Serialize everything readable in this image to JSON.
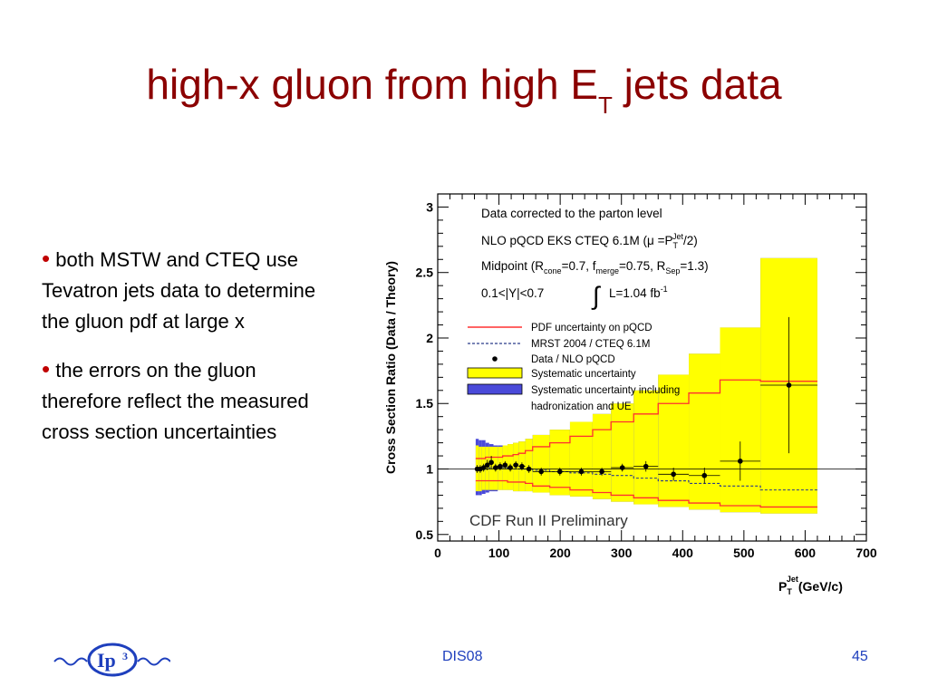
{
  "slide": {
    "title_main": "high-x gluon from high E",
    "title_sub": "T",
    "title_end": " jets data",
    "bullets": [
      "both MSTW and CTEQ use Tevatron jets data to determine the gluon pdf at large x",
      "the errors on the gluon therefore reflect the measured cross section uncertainties"
    ],
    "footer_center": "DIS08",
    "page_number": "45",
    "logo_text": "Ip",
    "logo_sup": "3"
  },
  "colors": {
    "title": "#8b0000",
    "bullet": "#c00000",
    "footer": "#1e3fbd",
    "systematic": "#ffff00",
    "hadronization": "#4a4ad9",
    "pdf_line": "#ff3030",
    "mrst_line": "#2a3a8a"
  },
  "chart_data": {
    "type": "scatter",
    "ylabel": "Cross Section Ratio (Data / Theory)",
    "xlabel_main": "P",
    "xlabel_sub": "T",
    "xlabel_sup": "Jet",
    "xlabel_unit": "(GeV/c)",
    "xlim": [
      0,
      700
    ],
    "ylim": [
      0.45,
      3.1
    ],
    "xticks": [
      0,
      100,
      200,
      300,
      400,
      500,
      600,
      700
    ],
    "yticks": [
      0.5,
      1,
      1.5,
      2,
      2.5,
      3
    ],
    "annotations": {
      "line1": "Data corrected to the parton level",
      "line2_pre": "NLO pQCD EKS CTEQ 6.1M  (μ =P",
      "line2_sub": "T",
      "line2_sup": "Jet",
      "line2_post": "/2)",
      "line3_pre": "Midpoint  (R",
      "line3_sub1": "cone",
      "line3_mid1": "=0.7, f",
      "line3_sub2": "merge",
      "line3_mid2": "=0.75, R",
      "line3_sub3": "Sep",
      "line3_post": "=1.3)",
      "line4_rap": "0.1<|Y|<0.7",
      "line4_int": "∫",
      "line4_lumi": "L=1.04 fb",
      "line4_sup": "-1",
      "watermark": "CDF Run II Preliminary"
    },
    "legend": [
      {
        "label": "PDF uncertainty on pQCD",
        "kind": "pdf-line"
      },
      {
        "label": "MRST 2004 / CTEQ 6.1M",
        "kind": "mrst-line"
      },
      {
        "label": "Data / NLO pQCD",
        "kind": "marker"
      },
      {
        "label": "Systematic uncertainty",
        "kind": "syst-box"
      },
      {
        "label": "Systematic uncertainty including",
        "kind": "had-box"
      },
      {
        "label": "hadronization and UE",
        "kind": "none"
      }
    ],
    "bins": [
      {
        "lo": 62,
        "hi": 67,
        "y": 1.0,
        "err": 0.03,
        "sysl": 0.83,
        "sysh": 1.18,
        "hadl": 0.8,
        "hadh": 1.23,
        "pdfl": 0.91,
        "pdfh": 1.08,
        "mrst": 1.0
      },
      {
        "lo": 67,
        "hi": 72,
        "y": 1.0,
        "err": 0.03,
        "sysl": 0.83,
        "sysh": 1.17,
        "hadl": 0.8,
        "hadh": 1.22,
        "pdfl": 0.91,
        "pdfh": 1.08,
        "mrst": 1.0
      },
      {
        "lo": 72,
        "hi": 78,
        "y": 1.01,
        "err": 0.03,
        "sysl": 0.84,
        "sysh": 1.17,
        "hadl": 0.81,
        "hadh": 1.22,
        "pdfl": 0.91,
        "pdfh": 1.08,
        "mrst": 1.0
      },
      {
        "lo": 78,
        "hi": 84,
        "y": 1.03,
        "err": 0.04,
        "sysl": 0.84,
        "sysh": 1.17,
        "hadl": 0.82,
        "hadh": 1.2,
        "pdfl": 0.91,
        "pdfh": 1.09,
        "mrst": 1.0
      },
      {
        "lo": 84,
        "hi": 91,
        "y": 1.05,
        "err": 0.05,
        "sysl": 0.84,
        "sysh": 1.17,
        "hadl": 0.83,
        "hadh": 1.19,
        "pdfl": 0.91,
        "pdfh": 1.09,
        "mrst": 1.01
      },
      {
        "lo": 91,
        "hi": 98,
        "y": 1.01,
        "err": 0.03,
        "sysl": 0.84,
        "sysh": 1.17,
        "hadl": 0.83,
        "hadh": 1.18,
        "pdfl": 0.91,
        "pdfh": 1.09,
        "mrst": 1.01
      },
      {
        "lo": 98,
        "hi": 106,
        "y": 1.02,
        "err": 0.03,
        "sysl": 0.84,
        "sysh": 1.17,
        "hadl": 0.84,
        "hadh": 1.18,
        "pdfl": 0.91,
        "pdfh": 1.09,
        "mrst": 1.01
      },
      {
        "lo": 106,
        "hi": 114,
        "y": 1.03,
        "err": 0.03,
        "sysl": 0.84,
        "sysh": 1.18,
        "hadl": 0.84,
        "hadh": 1.18,
        "pdfl": 0.91,
        "pdfh": 1.1,
        "mrst": 1.01
      },
      {
        "lo": 114,
        "hi": 123,
        "y": 1.01,
        "err": 0.03,
        "sysl": 0.84,
        "sysh": 1.19,
        "hadl": 0.84,
        "hadh": 1.19,
        "pdfl": 0.9,
        "pdfh": 1.1,
        "mrst": 1.0
      },
      {
        "lo": 123,
        "hi": 132,
        "y": 1.03,
        "err": 0.03,
        "sysl": 0.83,
        "sysh": 1.2,
        "hadl": 0.83,
        "hadh": 1.2,
        "pdfl": 0.9,
        "pdfh": 1.11,
        "mrst": 1.0
      },
      {
        "lo": 132,
        "hi": 143,
        "y": 1.02,
        "err": 0.03,
        "sysl": 0.83,
        "sysh": 1.21,
        "hadl": 0.83,
        "hadh": 1.21,
        "pdfl": 0.9,
        "pdfh": 1.12,
        "mrst": 1.0
      },
      {
        "lo": 143,
        "hi": 155,
        "y": 1.0,
        "err": 0.03,
        "sysl": 0.83,
        "sysh": 1.23,
        "hadl": 0.83,
        "hadh": 1.23,
        "pdfl": 0.89,
        "pdfh": 1.14,
        "mrst": 1.0
      },
      {
        "lo": 155,
        "hi": 183,
        "y": 0.98,
        "err": 0.03,
        "sysl": 0.82,
        "sysh": 1.26,
        "hadl": 0.82,
        "hadh": 1.26,
        "pdfl": 0.87,
        "pdfh": 1.17,
        "mrst": 0.99
      },
      {
        "lo": 183,
        "hi": 216,
        "y": 0.98,
        "err": 0.03,
        "sysl": 0.8,
        "sysh": 1.3,
        "hadl": 0.8,
        "hadh": 1.3,
        "pdfl": 0.86,
        "pdfh": 1.2,
        "mrst": 0.98
      },
      {
        "lo": 216,
        "hi": 253,
        "y": 0.98,
        "err": 0.03,
        "sysl": 0.79,
        "sysh": 1.36,
        "hadl": 0.79,
        "hadh": 1.36,
        "pdfl": 0.84,
        "pdfh": 1.25,
        "mrst": 0.97
      },
      {
        "lo": 253,
        "hi": 283,
        "y": 0.98,
        "err": 0.03,
        "sysl": 0.77,
        "sysh": 1.42,
        "hadl": 0.77,
        "hadh": 1.42,
        "pdfl": 0.82,
        "pdfh": 1.3,
        "mrst": 0.96
      },
      {
        "lo": 283,
        "hi": 320,
        "y": 1.01,
        "err": 0.03,
        "sysl": 0.75,
        "sysh": 1.5,
        "hadl": 0.75,
        "hadh": 1.5,
        "pdfl": 0.8,
        "pdfh": 1.36,
        "mrst": 0.95
      },
      {
        "lo": 320,
        "hi": 360,
        "y": 1.02,
        "err": 0.04,
        "sysl": 0.73,
        "sysh": 1.6,
        "hadl": 0.73,
        "hadh": 1.6,
        "pdfl": 0.78,
        "pdfh": 1.42,
        "mrst": 0.93
      },
      {
        "lo": 360,
        "hi": 410,
        "y": 0.96,
        "err": 0.05,
        "sysl": 0.71,
        "sysh": 1.72,
        "hadl": 0.71,
        "hadh": 1.72,
        "pdfl": 0.76,
        "pdfh": 1.5,
        "mrst": 0.91
      },
      {
        "lo": 410,
        "hi": 461,
        "y": 0.95,
        "err": 0.06,
        "sysl": 0.69,
        "sysh": 1.88,
        "hadl": 0.69,
        "hadh": 1.88,
        "pdfl": 0.74,
        "pdfh": 1.58,
        "mrst": 0.89
      },
      {
        "lo": 461,
        "hi": 527,
        "y": 1.06,
        "err": 0.15,
        "sysl": 0.67,
        "sysh": 2.08,
        "hadl": 0.67,
        "hadh": 2.08,
        "pdfl": 0.72,
        "pdfh": 1.68,
        "mrst": 0.87
      },
      {
        "lo": 527,
        "hi": 620,
        "y": 1.64,
        "err": 0.52,
        "sysl": 0.66,
        "sysh": 2.61,
        "hadl": 0.66,
        "hadh": 2.61,
        "pdfl": 0.71,
        "pdfh": 1.67,
        "mrst": 0.84
      }
    ]
  }
}
